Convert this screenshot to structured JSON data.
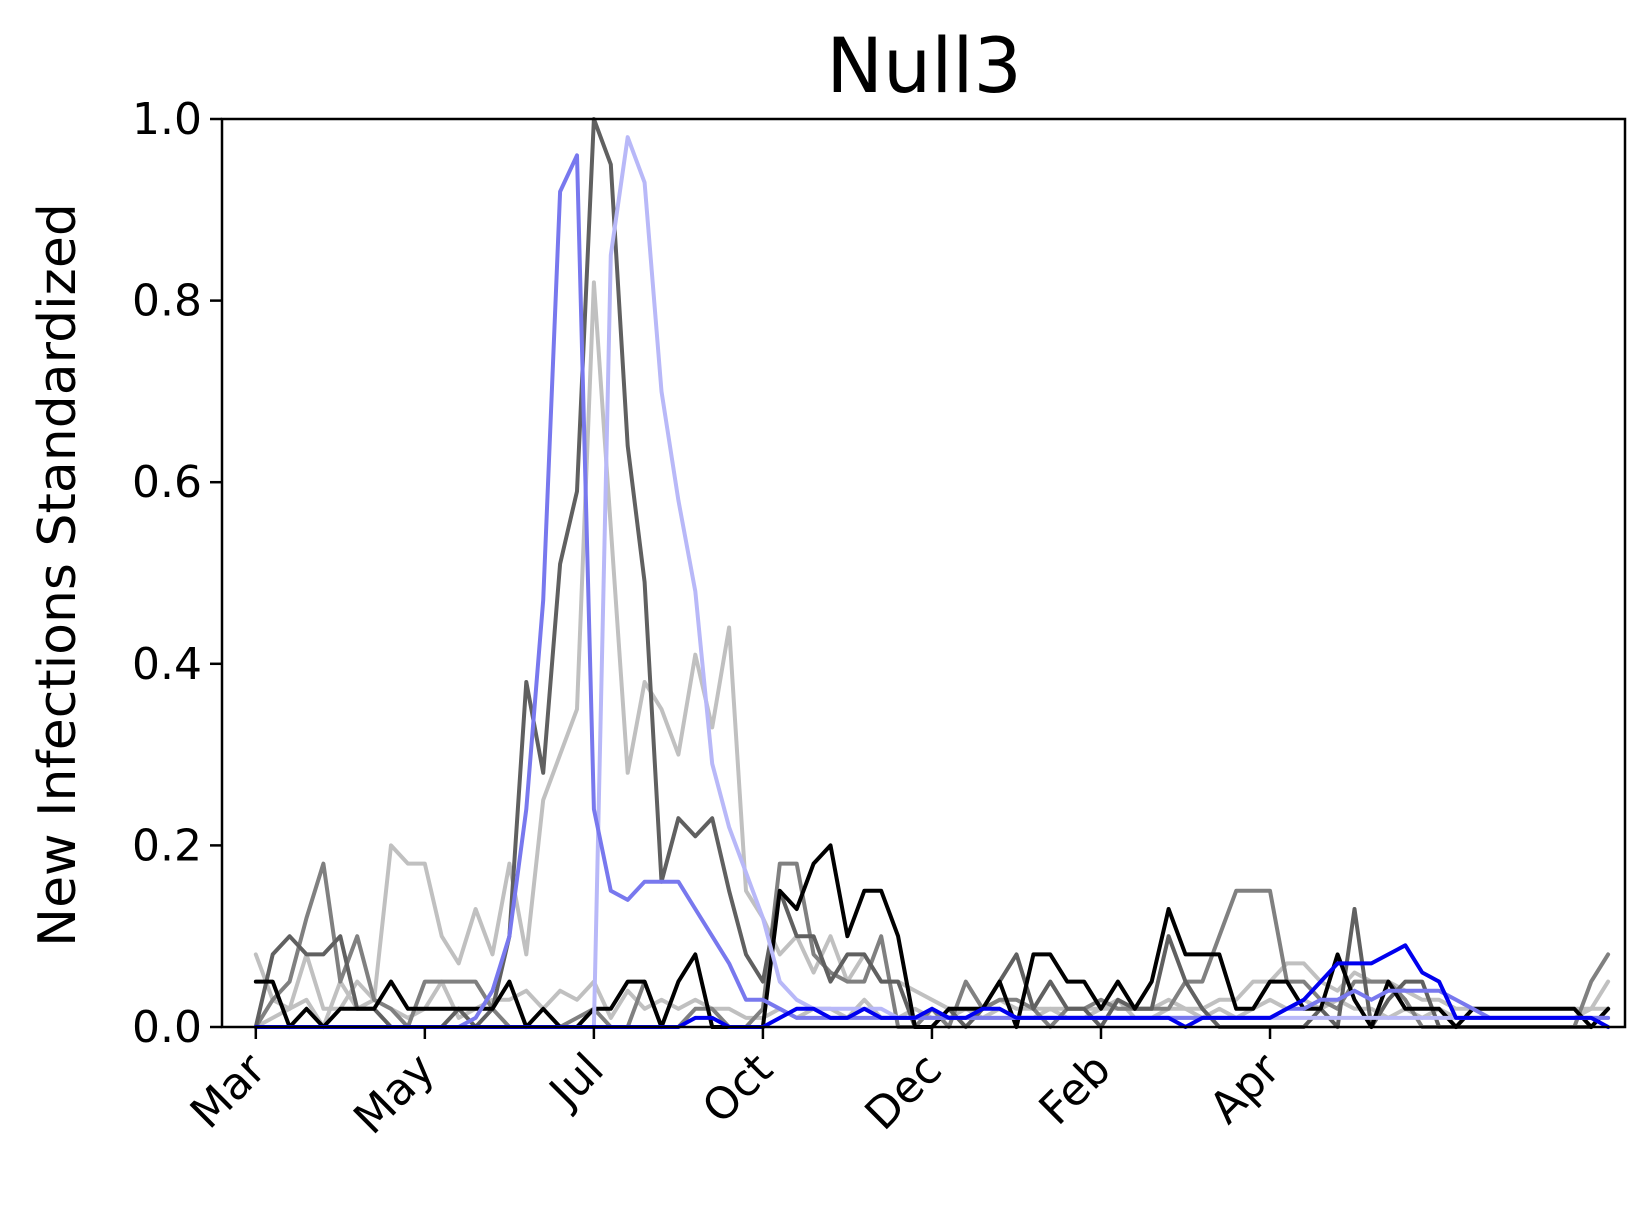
{
  "chart_data": {
    "type": "line",
    "title": "Null3",
    "xlabel": "",
    "ylabel": "New Infections Standardized",
    "ylim": [
      0,
      1
    ],
    "xlim": [
      -2,
      81
    ],
    "yticks": [
      "0.0",
      "0.2",
      "0.4",
      "0.6",
      "0.8",
      "1.0"
    ],
    "ytick_values": [
      0,
      0.2,
      0.4,
      0.6,
      0.8,
      1.0
    ],
    "xticks": [
      "Mar",
      "May",
      "Jul",
      "Oct",
      "Dec",
      "Feb",
      "Apr"
    ],
    "xtick_values": [
      0,
      10,
      20,
      30,
      40,
      50,
      60
    ],
    "grid": false,
    "legend": "none",
    "series": [
      {
        "color": "#c0c0c0",
        "values": [
          0.08,
          0.03,
          0.02,
          0.08,
          0.02,
          0.02,
          0.05,
          0.03,
          0.02,
          0.01,
          0.02,
          0.05,
          0.01,
          0.02,
          0.03,
          0.03,
          0.04,
          0.02,
          0.04,
          0.03,
          0.05,
          0.01,
          0.04,
          0.02,
          0.03,
          0.02,
          0.03,
          0.02,
          0.02,
          0.01,
          0.01,
          0.02,
          0.01,
          0.02,
          0.02,
          0.01,
          0.03,
          0.01,
          0.01,
          0.02,
          0.01,
          0.01,
          0.02,
          0.01,
          0.02,
          0.01,
          0.01,
          0.02,
          0.01,
          0.01,
          0.02,
          0.03,
          0.01,
          0.01,
          0.02,
          0.02,
          0.01,
          0.02,
          0.01,
          0.02,
          0.03,
          0.02,
          0.03,
          0.02,
          0.03,
          0.02,
          0.02,
          0.01,
          0.02,
          0.01,
          0.02,
          0.01,
          0.01,
          0.01,
          0.01,
          0.01,
          0.01,
          0.01,
          0.01,
          0.02,
          0.05
        ]
      },
      {
        "color": "#c0c0c0",
        "values": [
          0.0,
          0.01,
          0.02,
          0.03,
          0.0,
          0.05,
          0.02,
          0.03,
          0.2,
          0.18,
          0.18,
          0.1,
          0.07,
          0.13,
          0.08,
          0.18,
          0.08,
          0.25,
          0.3,
          0.35,
          0.82,
          0.55,
          0.28,
          0.38,
          0.35,
          0.3,
          0.41,
          0.33,
          0.44,
          0.15,
          0.12,
          0.08,
          0.1,
          0.06,
          0.1,
          0.05,
          0.08,
          0.05,
          0.05,
          0.04,
          0.03,
          0.02,
          0.02,
          0.02,
          0.03,
          0.02,
          0.02,
          0.02,
          0.02,
          0.02,
          0.02,
          0.02,
          0.02,
          0.02,
          0.03,
          0.02,
          0.02,
          0.03,
          0.03,
          0.05,
          0.05,
          0.07,
          0.07,
          0.05,
          0.04,
          0.06,
          0.05,
          0.05,
          0.04,
          0.03,
          0.03,
          0.02,
          0.02,
          0.02,
          0.02,
          0.02,
          0.02,
          0.02,
          0.02,
          0.02,
          0.02
        ]
      },
      {
        "color": "#808080",
        "values": [
          0.0,
          0.03,
          0.05,
          0.12,
          0.18,
          0.05,
          0.1,
          0.03,
          0.02,
          0.0,
          0.05,
          0.05,
          0.05,
          0.05,
          0.02,
          0.0,
          0.0,
          0.0,
          0.0,
          0.01,
          0.02,
          0.0,
          0.0,
          0.05,
          0.0,
          0.0,
          0.02,
          0.02,
          0.0,
          0.0,
          0.02,
          0.18,
          0.18,
          0.08,
          0.06,
          0.05,
          0.05,
          0.1,
          0.0,
          0.0,
          0.02,
          0.0,
          0.05,
          0.02,
          0.03,
          0.03,
          0.02,
          0.0,
          0.02,
          0.02,
          0.03,
          0.02,
          0.02,
          0.02,
          0.02,
          0.05,
          0.05,
          0.1,
          0.15,
          0.15,
          0.15,
          0.05,
          0.05,
          0.03,
          0.02,
          0.05,
          0.05,
          0.05,
          0.03,
          0.0,
          0.0,
          0.0,
          0.0,
          0.0,
          0.0,
          0.0,
          0.0,
          0.0,
          0.0,
          0.05,
          0.08
        ]
      },
      {
        "color": "#606060",
        "values": [
          0.0,
          0.08,
          0.1,
          0.08,
          0.08,
          0.1,
          0.02,
          0.02,
          0.0,
          0.0,
          0.0,
          0.0,
          0.02,
          0.0,
          0.02,
          0.1,
          0.38,
          0.28,
          0.51,
          0.59,
          1.0,
          0.95,
          0.64,
          0.49,
          0.16,
          0.23,
          0.21,
          0.23,
          0.15,
          0.08,
          0.05,
          0.15,
          0.1,
          0.1,
          0.05,
          0.08,
          0.08,
          0.05,
          0.05,
          0.0,
          0.0,
          0.02,
          0.0,
          0.02,
          0.05,
          0.08,
          0.02,
          0.05,
          0.02,
          0.02,
          0.0,
          0.03,
          0.02,
          0.02,
          0.1,
          0.05,
          0.02,
          0.0,
          0.0,
          0.0,
          0.0,
          0.0,
          0.0,
          0.02,
          0.0,
          0.13,
          0.0,
          0.03,
          0.05,
          0.05,
          0.0,
          0.0,
          0.0,
          0.0,
          0.0,
          0.0,
          0.0,
          0.0,
          0.0,
          0.0,
          0.02
        ]
      },
      {
        "color": "#000000",
        "values": [
          0.05,
          0.05,
          0.0,
          0.02,
          0.0,
          0.02,
          0.02,
          0.02,
          0.05,
          0.02,
          0.02,
          0.02,
          0.02,
          0.02,
          0.02,
          0.05,
          0.0,
          0.02,
          0.0,
          0.0,
          0.02,
          0.02,
          0.05,
          0.05,
          0.0,
          0.05,
          0.08,
          0.0,
          0.0,
          0.0,
          0.0,
          0.15,
          0.13,
          0.18,
          0.2,
          0.1,
          0.15,
          0.15,
          0.1,
          0.0,
          0.0,
          0.02,
          0.02,
          0.02,
          0.05,
          0.0,
          0.08,
          0.08,
          0.05,
          0.05,
          0.02,
          0.05,
          0.02,
          0.05,
          0.13,
          0.08,
          0.08,
          0.08,
          0.02,
          0.02,
          0.05,
          0.05,
          0.02,
          0.02,
          0.08,
          0.03,
          0.0,
          0.05,
          0.02,
          0.02,
          0.02,
          0.0,
          0.02,
          0.02,
          0.02,
          0.02,
          0.02,
          0.02,
          0.02,
          0.0,
          0.02
        ]
      },
      {
        "color": "#b8b8f8",
        "values": [
          0.0,
          0.0,
          0.0,
          0.0,
          0.0,
          0.0,
          0.0,
          0.0,
          0.0,
          0.0,
          0.0,
          0.0,
          0.0,
          0.0,
          0.0,
          0.0,
          0.0,
          0.0,
          0.0,
          0.0,
          0.0,
          0.85,
          0.98,
          0.93,
          0.7,
          0.58,
          0.48,
          0.29,
          0.22,
          0.17,
          0.12,
          0.05,
          0.03,
          0.02,
          0.02,
          0.02,
          0.02,
          0.02,
          0.01,
          0.01,
          0.01,
          0.01,
          0.01,
          0.01,
          0.01,
          0.01,
          0.01,
          0.01,
          0.01,
          0.01,
          0.01,
          0.01,
          0.01,
          0.01,
          0.01,
          0.01,
          0.01,
          0.01,
          0.01,
          0.01,
          0.01,
          0.01,
          0.01,
          0.01,
          0.01,
          0.01,
          0.01,
          0.01,
          0.01,
          0.01,
          0.01,
          0.01,
          0.01,
          0.01,
          0.01,
          0.01,
          0.01,
          0.01,
          0.01,
          0.01,
          0.01
        ]
      },
      {
        "color": "#7878ee",
        "values": [
          0.0,
          0.0,
          0.0,
          0.0,
          0.0,
          0.0,
          0.0,
          0.0,
          0.0,
          0.0,
          0.0,
          0.0,
          0.0,
          0.01,
          0.04,
          0.1,
          0.24,
          0.47,
          0.92,
          0.96,
          0.24,
          0.15,
          0.14,
          0.16,
          0.16,
          0.16,
          0.13,
          0.1,
          0.07,
          0.03,
          0.03,
          0.02,
          0.01,
          0.01,
          0.01,
          0.01,
          0.01,
          0.01,
          0.01,
          0.01,
          0.01,
          0.01,
          0.01,
          0.01,
          0.01,
          0.01,
          0.01,
          0.01,
          0.01,
          0.01,
          0.01,
          0.01,
          0.01,
          0.01,
          0.01,
          0.01,
          0.01,
          0.01,
          0.01,
          0.01,
          0.01,
          0.02,
          0.02,
          0.03,
          0.03,
          0.04,
          0.03,
          0.04,
          0.04,
          0.04,
          0.04,
          0.03,
          0.02,
          0.01,
          0.01,
          0.01,
          0.01,
          0.01,
          0.01,
          0.01,
          0.01
        ]
      },
      {
        "color": "#0000ee",
        "values": [
          0.0,
          0.0,
          0.0,
          0.0,
          0.0,
          0.0,
          0.0,
          0.0,
          0.0,
          0.0,
          0.0,
          0.0,
          0.0,
          0.0,
          0.0,
          0.0,
          0.0,
          0.0,
          0.0,
          0.0,
          0.0,
          0.0,
          0.0,
          0.0,
          0.0,
          0.0,
          0.01,
          0.01,
          0.0,
          0.0,
          0.0,
          0.01,
          0.02,
          0.02,
          0.01,
          0.01,
          0.02,
          0.01,
          0.01,
          0.01,
          0.02,
          0.01,
          0.01,
          0.02,
          0.02,
          0.01,
          0.01,
          0.01,
          0.01,
          0.01,
          0.01,
          0.01,
          0.01,
          0.01,
          0.01,
          0.0,
          0.01,
          0.01,
          0.01,
          0.01,
          0.01,
          0.02,
          0.03,
          0.05,
          0.07,
          0.07,
          0.07,
          0.08,
          0.09,
          0.06,
          0.05,
          0.01,
          0.01,
          0.01,
          0.01,
          0.01,
          0.01,
          0.01,
          0.01,
          0.01,
          0.0
        ]
      }
    ]
  }
}
